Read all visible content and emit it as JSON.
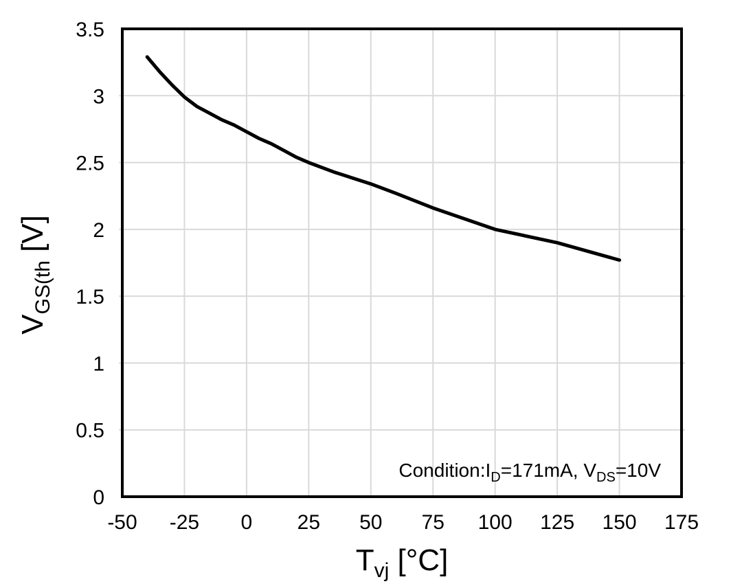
{
  "chart_data": {
    "type": "line",
    "title": "",
    "xlabel": {
      "main": "T",
      "sub": "vj",
      "unit": " [°C]"
    },
    "ylabel": {
      "main": "V",
      "sub": "GS(th",
      "unit": " [V]"
    },
    "xlim": [
      -50,
      175
    ],
    "ylim": [
      0,
      3.5
    ],
    "x_ticks": [
      "-50",
      "-25",
      "0",
      "25",
      "50",
      "75",
      "100",
      "125",
      "150",
      "175"
    ],
    "y_ticks": [
      "0",
      "0.5",
      "1",
      "1.5",
      "2",
      "2.5",
      "3",
      "3.5"
    ],
    "grid": true,
    "legend": "none",
    "series": [
      {
        "name": "VGS(th) vs Tvj",
        "points": [
          [
            -40,
            3.29
          ],
          [
            -35,
            3.18
          ],
          [
            -30,
            3.08
          ],
          [
            -25,
            2.99
          ],
          [
            -20,
            2.92
          ],
          [
            -15,
            2.87
          ],
          [
            -10,
            2.82
          ],
          [
            -5,
            2.78
          ],
          [
            0,
            2.73
          ],
          [
            5,
            2.68
          ],
          [
            10,
            2.64
          ],
          [
            15,
            2.59
          ],
          [
            20,
            2.54
          ],
          [
            25,
            2.5
          ],
          [
            35,
            2.43
          ],
          [
            50,
            2.34
          ],
          [
            60,
            2.27
          ],
          [
            75,
            2.16
          ],
          [
            100,
            2.0
          ],
          [
            125,
            1.9
          ],
          [
            150,
            1.77
          ]
        ],
        "color": "#000000"
      }
    ],
    "condition": {
      "prefix": "Condition:I",
      "sub1": "D",
      "mid": "=171mA, V",
      "sub2": "DS",
      "suffix": "=10V"
    },
    "colors": {
      "grid": "#d9d9d9",
      "axis": "#000000",
      "curve": "#000000",
      "text": "#000000",
      "background": "#ffffff"
    }
  }
}
